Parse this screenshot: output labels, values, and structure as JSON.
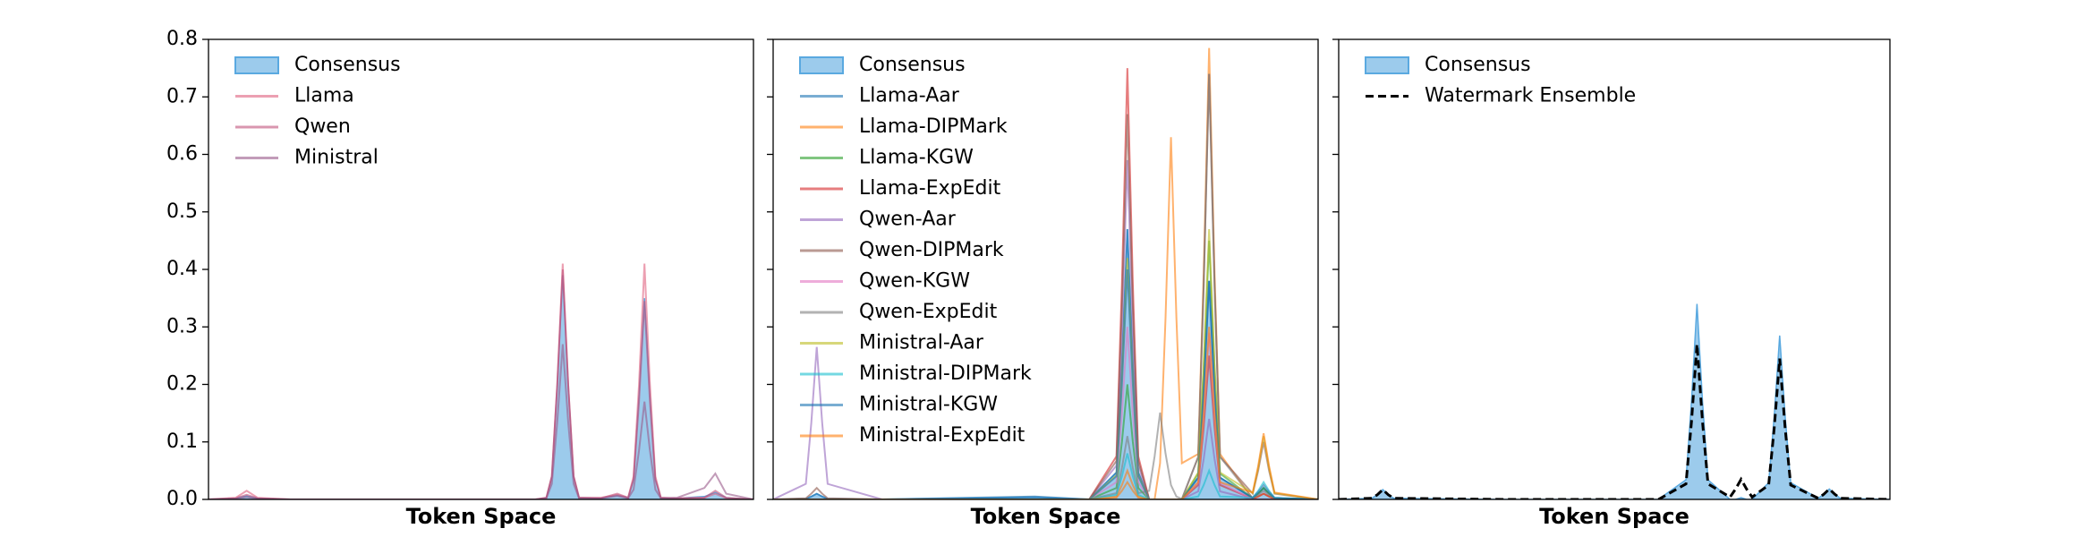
{
  "chart_data": [
    {
      "type": "line",
      "xlabel": "Token Space",
      "legend": "upper left",
      "xlim": [
        0,
        100
      ],
      "ylim": [
        0,
        0.8
      ],
      "yticks": [
        {
          "value": 0,
          "label": "0.0"
        },
        {
          "value": 0.1,
          "label": "0.1"
        },
        {
          "value": 0.2,
          "label": "0.2"
        },
        {
          "value": 0.3,
          "label": "0.3"
        },
        {
          "value": 0.4,
          "label": "0.4"
        },
        {
          "value": 0.5,
          "label": "0.5"
        },
        {
          "value": 0.6,
          "label": "0.6"
        },
        {
          "value": 0.7,
          "label": "0.7"
        },
        {
          "value": 0.8,
          "label": "0.8"
        }
      ],
      "x": [
        0,
        5,
        7,
        9,
        15,
        30,
        45,
        60,
        62,
        63,
        64,
        65,
        66,
        67,
        68,
        72,
        75,
        77,
        78,
        79,
        80,
        81,
        82,
        83,
        86,
        91,
        93,
        95,
        100
      ],
      "series": [
        {
          "name": "Consensus",
          "color": "#5aa9e0",
          "style": "area",
          "values": [
            0,
            0.002,
            0.006,
            0.002,
            0,
            0,
            0,
            0,
            0.003,
            0.04,
            0.2,
            0.39,
            0.2,
            0.04,
            0.003,
            0.002,
            0.007,
            0.003,
            0.035,
            0.18,
            0.35,
            0.18,
            0.035,
            0.003,
            0.002,
            0.005,
            0.012,
            0.003,
            0
          ]
        },
        {
          "name": "Llama",
          "color": "#e0607e",
          "style": "solid",
          "values": [
            0,
            0.003,
            0.015,
            0.003,
            0,
            0,
            0,
            0,
            0.003,
            0.04,
            0.2,
            0.41,
            0.2,
            0.04,
            0.003,
            0.003,
            0.008,
            0.003,
            0.04,
            0.2,
            0.41,
            0.2,
            0.04,
            0.003,
            0.002,
            0.003,
            0.01,
            0.002,
            0
          ]
        },
        {
          "name": "Qwen",
          "color": "#c0507a",
          "style": "solid",
          "values": [
            0,
            0.002,
            0.008,
            0.002,
            0,
            0,
            0,
            0,
            0.003,
            0.04,
            0.2,
            0.4,
            0.2,
            0.04,
            0.003,
            0.002,
            0.01,
            0.003,
            0.035,
            0.17,
            0.345,
            0.17,
            0.035,
            0.003,
            0.002,
            0.003,
            0.015,
            0.003,
            0
          ]
        },
        {
          "name": "Ministral",
          "color": "#9a5a8a",
          "style": "solid",
          "values": [
            0,
            0.001,
            0.004,
            0.001,
            0,
            0,
            0,
            0,
            0.002,
            0.027,
            0.135,
            0.27,
            0.135,
            0.027,
            0.002,
            0.002,
            0.006,
            0.002,
            0.017,
            0.085,
            0.17,
            0.085,
            0.017,
            0.002,
            0.003,
            0.02,
            0.045,
            0.01,
            0
          ]
        }
      ]
    },
    {
      "type": "line",
      "xlabel": "Token Space",
      "legend": "upper left",
      "xlim": [
        0,
        100
      ],
      "ylim": [
        0,
        0.8
      ],
      "yticks": [
        0,
        0.1,
        0.2,
        0.3,
        0.4,
        0.5,
        0.6,
        0.7,
        0.8
      ],
      "x": [
        0,
        6,
        7,
        8,
        9,
        10,
        20,
        48,
        58,
        63,
        64,
        65,
        66,
        67,
        69,
        70,
        71,
        72,
        73,
        74,
        75,
        78,
        79,
        80,
        81,
        82,
        88,
        89,
        90,
        91,
        92,
        100
      ],
      "series": [
        {
          "name": "Consensus",
          "color": "#5aa9e0",
          "style": "area",
          "values": [
            0,
            0.001,
            0.005,
            0.01,
            0.005,
            0.001,
            0,
            0.003,
            0,
            0.047,
            0.235,
            0.47,
            0.235,
            0.047,
            0,
            0,
            0,
            0,
            0,
            0,
            0,
            0.038,
            0.19,
            0.38,
            0.19,
            0.038,
            0.002,
            0.01,
            0.02,
            0.01,
            0.002,
            0
          ]
        },
        {
          "name": "Llama-Aar",
          "color": "#1f77b4",
          "style": "solid",
          "values": [
            0,
            0.001,
            0.005,
            0.01,
            0.005,
            0.001,
            0,
            0.004,
            0,
            0.047,
            0.235,
            0.47,
            0.235,
            0.047,
            0,
            0,
            0,
            0,
            0,
            0,
            0,
            0.038,
            0.19,
            0.38,
            0.19,
            0.038,
            0.002,
            0.01,
            0.02,
            0.01,
            0.002,
            0
          ]
        },
        {
          "name": "Llama-DIPMark",
          "color": "#ff7f0e",
          "style": "solid",
          "values": [
            0,
            0,
            0,
            0,
            0,
            0,
            0,
            0,
            0,
            0.005,
            0.025,
            0.05,
            0.025,
            0.005,
            0,
            0,
            0.063,
            0.315,
            0.63,
            0.315,
            0.063,
            0.079,
            0.393,
            0.785,
            0.393,
            0.079,
            0.001,
            0.005,
            0.01,
            0.005,
            0.001,
            0
          ]
        },
        {
          "name": "Llama-KGW",
          "color": "#2ca02c",
          "style": "solid",
          "values": [
            0,
            0,
            0,
            0,
            0,
            0,
            0,
            0,
            0,
            0.02,
            0.1,
            0.2,
            0.1,
            0.02,
            0,
            0,
            0,
            0,
            0,
            0,
            0,
            0.045,
            0.225,
            0.45,
            0.225,
            0.045,
            0.002,
            0.01,
            0.02,
            0.01,
            0.002,
            0
          ]
        },
        {
          "name": "Llama-ExpEdit",
          "color": "#d62728",
          "style": "solid",
          "values": [
            0,
            0,
            0,
            0,
            0,
            0,
            0,
            0,
            0,
            0.075,
            0.375,
            0.75,
            0.375,
            0.075,
            0,
            0,
            0,
            0,
            0,
            0,
            0,
            0.025,
            0.125,
            0.25,
            0.125,
            0.025,
            0.001,
            0.005,
            0.01,
            0.005,
            0.001,
            0
          ]
        },
        {
          "name": "Qwen-Aar",
          "color": "#9467bd",
          "style": "solid",
          "values": [
            0,
            0.027,
            0.133,
            0.265,
            0.133,
            0.027,
            0,
            0,
            0,
            0.059,
            0.295,
            0.59,
            0.295,
            0.059,
            0,
            0,
            0,
            0,
            0,
            0,
            0,
            0.014,
            0.07,
            0.14,
            0.07,
            0.014,
            0,
            0,
            0,
            0,
            0,
            0
          ]
        },
        {
          "name": "Qwen-DIPMark",
          "color": "#8c564b",
          "style": "solid",
          "values": [
            0,
            0.002,
            0.01,
            0.02,
            0.01,
            0.002,
            0,
            0,
            0,
            0.067,
            0.335,
            0.67,
            0.335,
            0.067,
            0,
            0,
            0,
            0,
            0,
            0,
            0,
            0.074,
            0.37,
            0.74,
            0.37,
            0.074,
            0.01,
            0.05,
            0.1,
            0.05,
            0.01,
            0
          ]
        },
        {
          "name": "Qwen-KGW",
          "color": "#e377c2",
          "style": "solid",
          "values": [
            0,
            0,
            0,
            0,
            0,
            0,
            0,
            0,
            0,
            0.03,
            0.15,
            0.3,
            0.15,
            0.03,
            0,
            0,
            0,
            0,
            0,
            0,
            0,
            0.029,
            0.145,
            0.29,
            0.145,
            0.029,
            0,
            0,
            0,
            0,
            0,
            0
          ]
        },
        {
          "name": "Qwen-ExpEdit",
          "color": "#7f7f7f",
          "style": "solid",
          "values": [
            0,
            0,
            0,
            0,
            0,
            0,
            0,
            0,
            0,
            0.011,
            0.055,
            0.11,
            0.055,
            0.011,
            0.015,
            0.075,
            0.151,
            0.08,
            0.025,
            0.005,
            0.001,
            0.074,
            0.37,
            0.74,
            0.37,
            0.074,
            0.002,
            0.008,
            0.015,
            0.008,
            0.002,
            0
          ]
        },
        {
          "name": "Ministral-Aar",
          "color": "#bcbd22",
          "style": "solid",
          "values": [
            0,
            0,
            0,
            0,
            0,
            0,
            0,
            0,
            0,
            0.042,
            0.21,
            0.42,
            0.21,
            0.042,
            0,
            0,
            0,
            0,
            0,
            0,
            0,
            0.047,
            0.235,
            0.47,
            0.235,
            0.047,
            0.011,
            0.055,
            0.11,
            0.055,
            0.011,
            0
          ]
        },
        {
          "name": "Ministral-DIPMark",
          "color": "#17becf",
          "style": "solid",
          "values": [
            0,
            0,
            0,
            0,
            0,
            0,
            0,
            0,
            0,
            0.008,
            0.04,
            0.08,
            0.04,
            0.008,
            0,
            0,
            0,
            0,
            0,
            0,
            0,
            0.005,
            0.025,
            0.05,
            0.025,
            0.005,
            0.003,
            0.015,
            0.03,
            0.015,
            0.003,
            0
          ]
        },
        {
          "name": "Ministral-KGW",
          "color": "#1f77b4",
          "style": "solid",
          "values": [
            0,
            0,
            0,
            0,
            0,
            0,
            0,
            0.005,
            0,
            0.04,
            0.2,
            0.4,
            0.2,
            0.04,
            0,
            0,
            0,
            0,
            0,
            0,
            0,
            0.038,
            0.19,
            0.38,
            0.19,
            0.038,
            0.003,
            0.013,
            0.025,
            0.013,
            0.003,
            0
          ]
        },
        {
          "name": "Ministral-ExpEdit",
          "color": "#ff7f0e",
          "style": "solid",
          "values": [
            0,
            0,
            0,
            0,
            0,
            0,
            0,
            0,
            0,
            0.003,
            0.015,
            0.03,
            0.015,
            0.003,
            0,
            0,
            0,
            0,
            0,
            0,
            0,
            0.03,
            0.15,
            0.3,
            0.15,
            0.03,
            0.012,
            0.058,
            0.115,
            0.058,
            0.012,
            0
          ]
        }
      ]
    },
    {
      "type": "line",
      "xlabel": "Token Space",
      "legend": "upper left",
      "xlim": [
        0,
        100
      ],
      "ylim": [
        0,
        0.8
      ],
      "yticks": [
        0,
        0.1,
        0.2,
        0.3,
        0.4,
        0.5,
        0.6,
        0.7,
        0.8
      ],
      "x": [
        0,
        6,
        7,
        8,
        9,
        10,
        30,
        58,
        63,
        64,
        65,
        66,
        67,
        71,
        72,
        73,
        74,
        75,
        78,
        79,
        80,
        81,
        82,
        87,
        88,
        89,
        90,
        91,
        100
      ],
      "series": [
        {
          "name": "Consensus",
          "color": "#5aa9e0",
          "style": "area",
          "values": [
            0,
            0.002,
            0.008,
            0.017,
            0.008,
            0.002,
            0,
            0,
            0.034,
            0.17,
            0.34,
            0.17,
            0.034,
            0,
            0,
            0.003,
            0,
            0,
            0.029,
            0.143,
            0.285,
            0.143,
            0.029,
            0.002,
            0.009,
            0.018,
            0.009,
            0.002,
            0
          ]
        },
        {
          "name": "Watermark Ensemble",
          "color": "#000000",
          "style": "dashed",
          "values": [
            0,
            0.002,
            0.008,
            0.017,
            0.008,
            0.002,
            0,
            0,
            0.027,
            0.135,
            0.27,
            0.135,
            0.027,
            0.004,
            0.018,
            0.035,
            0.018,
            0.004,
            0.025,
            0.123,
            0.245,
            0.123,
            0.025,
            0.002,
            0.009,
            0.018,
            0.009,
            0.002,
            0
          ]
        }
      ]
    }
  ]
}
